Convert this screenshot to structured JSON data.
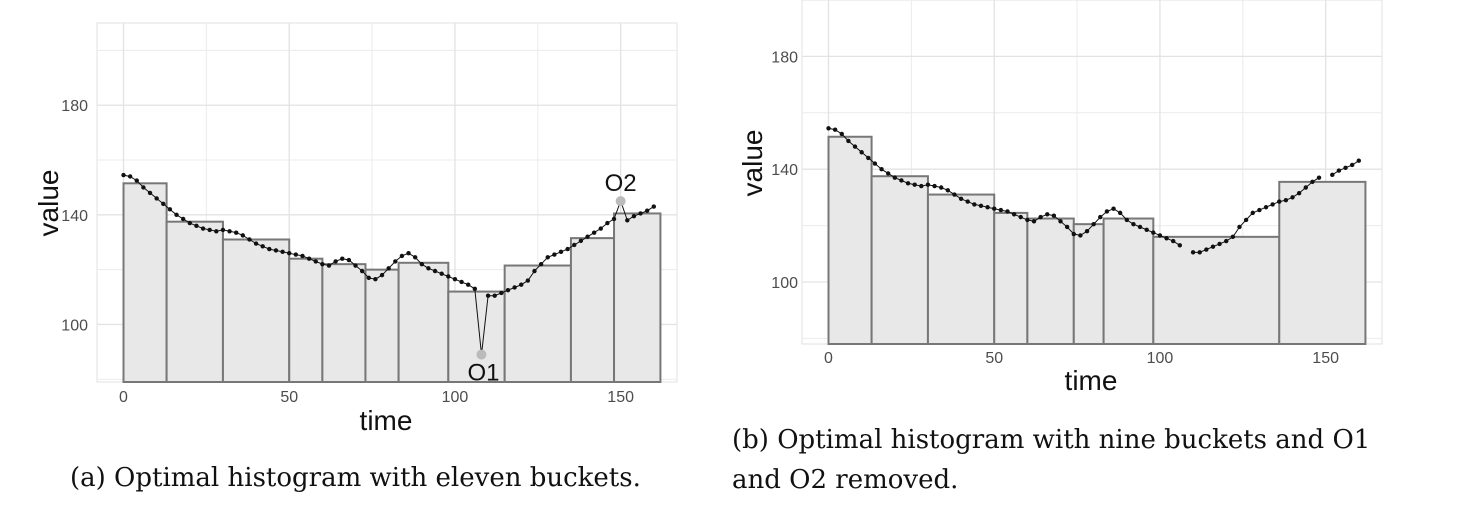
{
  "captions": {
    "a": "(a) Optimal histogram with eleven buckets.",
    "b": "(b) Optimal histogram with nine buckets and O1\nand O2 removed."
  },
  "colors": {
    "bar_fill": "#e8e8e8",
    "bar_stroke": "#777777",
    "series": "#111111",
    "outlier": "#bbbbbb",
    "grid": "#ebebeb"
  },
  "chart_data": [
    {
      "type": "bar",
      "xlabel": "time",
      "ylabel": "value",
      "xlim": [
        -8,
        167
      ],
      "ylim": [
        79,
        210
      ],
      "xticks": [
        0,
        50,
        100,
        150
      ],
      "yticks": [
        100,
        140,
        180
      ],
      "buckets": [
        {
          "x0": 0,
          "x1": 13,
          "value": 151.5
        },
        {
          "x0": 13,
          "x1": 30,
          "value": 137.5
        },
        {
          "x0": 30,
          "x1": 50,
          "value": 131
        },
        {
          "x0": 50,
          "x1": 60,
          "value": 124
        },
        {
          "x0": 60,
          "x1": 73,
          "value": 122
        },
        {
          "x0": 73,
          "x1": 83,
          "value": 120
        },
        {
          "x0": 83,
          "x1": 98,
          "value": 122.5
        },
        {
          "x0": 98,
          "x1": 115,
          "value": 112
        },
        {
          "x0": 115,
          "x1": 135,
          "value": 121.5
        },
        {
          "x0": 135,
          "x1": 148,
          "value": 131.5
        },
        {
          "x0": 148,
          "x1": 162,
          "value": 140.5
        }
      ],
      "series": [
        {
          "x": [
            0,
            2,
            4,
            6,
            8,
            10,
            12,
            14,
            16,
            18,
            20,
            22,
            24,
            26,
            28,
            30,
            32,
            34,
            36,
            38,
            40,
            42,
            44,
            46,
            48,
            50,
            52,
            54,
            56,
            58,
            60,
            62,
            64,
            66,
            68,
            70,
            72,
            74,
            76,
            78,
            80,
            82,
            84,
            86,
            88,
            90,
            92,
            94,
            96,
            98,
            100,
            102,
            104,
            106,
            108,
            110,
            112,
            114,
            116,
            118,
            120,
            122,
            124,
            126,
            128,
            130,
            132,
            134,
            136,
            138,
            140,
            142,
            144,
            146,
            148,
            150,
            152,
            154,
            156,
            158,
            160
          ],
          "values": [
            154.5,
            154,
            152.5,
            150,
            148,
            146,
            144,
            142,
            140,
            138.5,
            137,
            136,
            135,
            134.5,
            134,
            134.5,
            134,
            133.5,
            132.5,
            131,
            129.5,
            128.5,
            127.5,
            127,
            126.5,
            126,
            125.5,
            125,
            124,
            123,
            122,
            121.5,
            123,
            124,
            123.5,
            121.5,
            119.5,
            117,
            116.5,
            118,
            120.5,
            123,
            125,
            126,
            124.5,
            122,
            120.5,
            119.5,
            118.5,
            117.5,
            116.5,
            115.5,
            114.5,
            113,
            89,
            110.5,
            110.5,
            111.5,
            112.5,
            113.5,
            114.5,
            116,
            119.5,
            122,
            124.5,
            125.5,
            126.5,
            127.5,
            129,
            130.5,
            132,
            133.5,
            135,
            137,
            138.5,
            145,
            138,
            139.5,
            140.5,
            141.5,
            143
          ]
        }
      ],
      "outliers": [
        {
          "label": "O1",
          "x": 108,
          "value": 89
        },
        {
          "label": "O2",
          "x": 150,
          "value": 145
        }
      ]
    },
    {
      "type": "bar",
      "xlabel": "time",
      "ylabel": "value",
      "xlim": [
        -8,
        167
      ],
      "ylim": [
        78,
        200
      ],
      "xticks": [
        0,
        50,
        100,
        150
      ],
      "yticks": [
        100,
        140,
        180
      ],
      "buckets": [
        {
          "x0": 0,
          "x1": 13,
          "value": 151.5
        },
        {
          "x0": 13,
          "x1": 30,
          "value": 137.5
        },
        {
          "x0": 30,
          "x1": 50,
          "value": 131
        },
        {
          "x0": 50,
          "x1": 60,
          "value": 124.5
        },
        {
          "x0": 60,
          "x1": 74,
          "value": 122.5
        },
        {
          "x0": 74,
          "x1": 83,
          "value": 120.5
        },
        {
          "x0": 83,
          "x1": 98,
          "value": 122.5
        },
        {
          "x0": 98,
          "x1": 136,
          "value": 116
        },
        {
          "x0": 136,
          "x1": 162,
          "value": 135.5
        }
      ],
      "series": [
        {
          "x": [
            0,
            2,
            4,
            6,
            8,
            10,
            12,
            14,
            16,
            18,
            20,
            22,
            24,
            26,
            28,
            30,
            32,
            34,
            36,
            38,
            40,
            42,
            44,
            46,
            48,
            50,
            52,
            54,
            56,
            58,
            60,
            62,
            64,
            66,
            68,
            70,
            72,
            74,
            76,
            78,
            80,
            82,
            84,
            86,
            88,
            90,
            92,
            94,
            96,
            98,
            100,
            102,
            104,
            106
          ],
          "values": [
            154.5,
            154,
            152.5,
            150,
            148,
            146,
            144,
            142,
            140,
            138.5,
            137,
            136,
            135,
            134.5,
            134,
            134.5,
            134,
            133.5,
            132.5,
            131,
            129.5,
            128.5,
            127.5,
            127,
            126.5,
            126,
            125.5,
            125,
            124,
            123,
            122,
            121.5,
            123,
            124,
            123.5,
            121.5,
            119.5,
            117,
            116.5,
            118,
            120.5,
            123,
            125,
            126,
            124.5,
            122,
            120.5,
            119.5,
            118.5,
            117.5,
            116.5,
            115.5,
            114.5,
            113
          ]
        },
        {
          "x": [
            110,
            112,
            114,
            116,
            118,
            120,
            122,
            124,
            126,
            128,
            130,
            132,
            134,
            136,
            138,
            140,
            142,
            144,
            146,
            148
          ],
          "values": [
            110.5,
            110.5,
            111.5,
            112.5,
            113.5,
            114.5,
            116,
            119.5,
            122,
            124.5,
            125.5,
            126.5,
            127.5,
            128.5,
            129,
            130,
            131.5,
            133.5,
            135.5,
            137
          ]
        },
        {
          "x": [
            152,
            154,
            156,
            158,
            160
          ],
          "values": [
            138,
            139.5,
            140.5,
            141.5,
            143
          ]
        }
      ]
    }
  ]
}
